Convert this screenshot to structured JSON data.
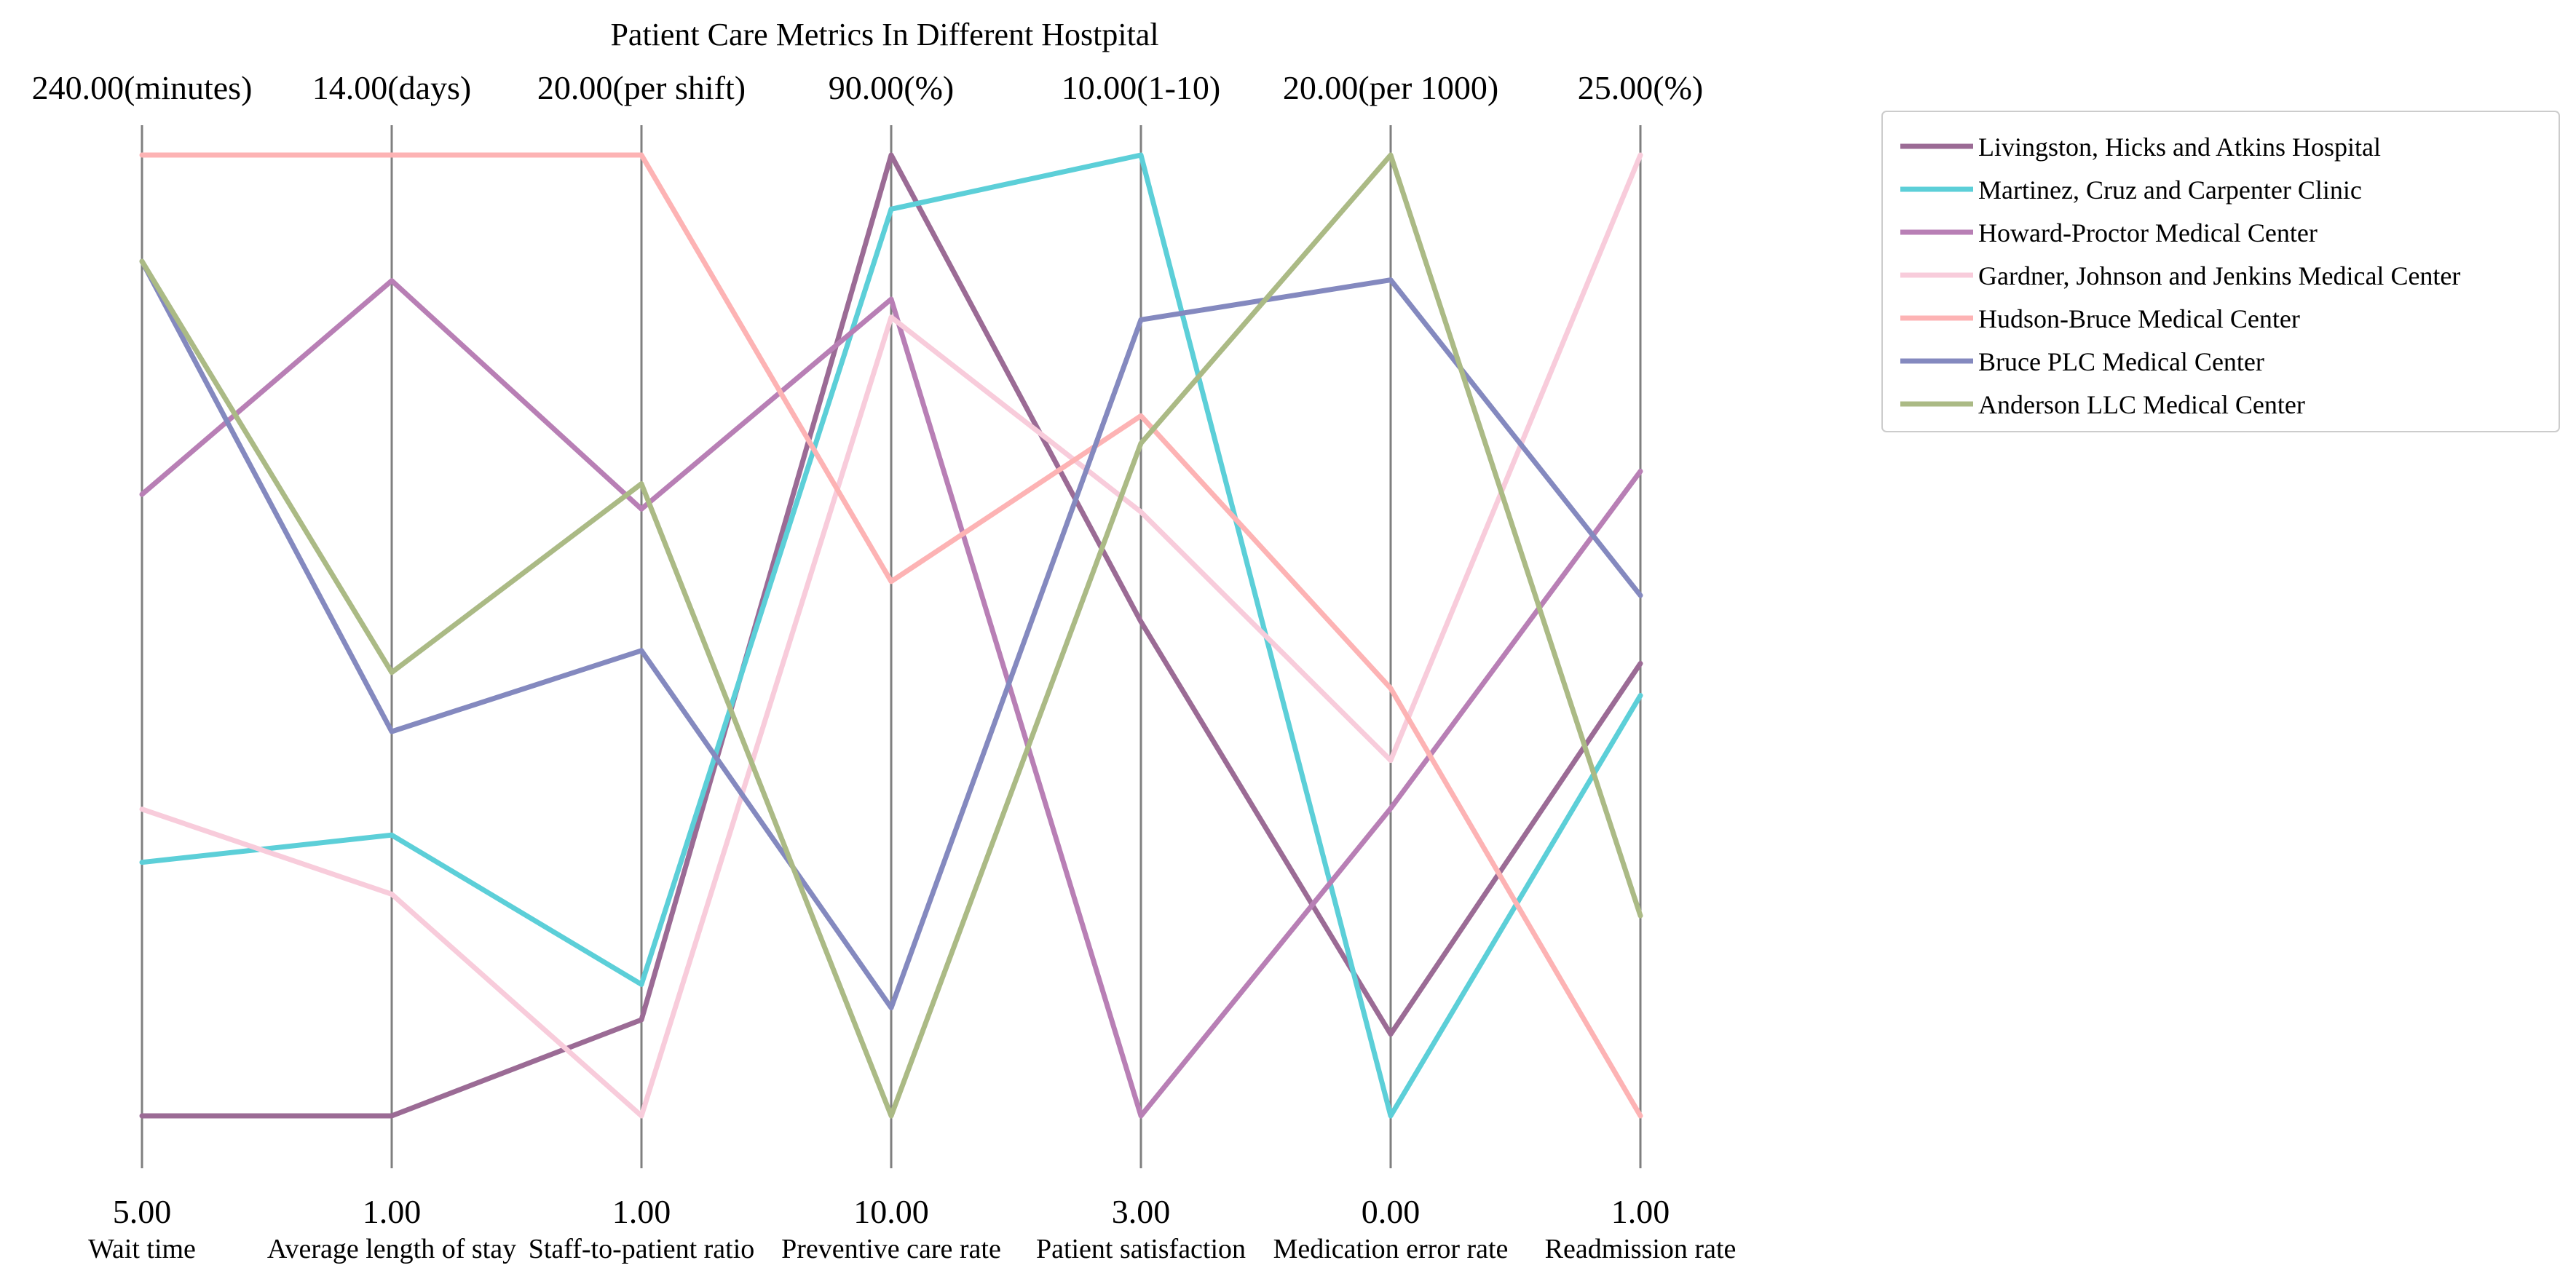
{
  "chart_data": {
    "type": "parallel-coordinates",
    "title": "Patient Care Metrics In Different Hostpital",
    "axes": [
      {
        "name": "Wait time",
        "min": 5,
        "max": 240,
        "min_label": "5.00",
        "max_label": "240.00(minutes)"
      },
      {
        "name": "Average length of stay",
        "min": 1,
        "max": 14,
        "min_label": "1.00",
        "max_label": "14.00(days)"
      },
      {
        "name": "Staff-to-patient ratio",
        "min": 1,
        "max": 20,
        "min_label": "1.00",
        "max_label": "20.00(per shift)"
      },
      {
        "name": "Preventive care rate",
        "min": 10,
        "max": 90,
        "min_label": "10.00",
        "max_label": "90.00(%)"
      },
      {
        "name": "Patient satisfaction",
        "min": 3,
        "max": 10,
        "min_label": "3.00",
        "max_label": "10.00(1-10)"
      },
      {
        "name": "Medication error rate",
        "min": 0,
        "max": 20,
        "min_label": "0.00",
        "max_label": "20.00(per 1000)"
      },
      {
        "name": "Readmission rate",
        "min": 1,
        "max": 25,
        "min_label": "1.00",
        "max_label": "25.00(%)"
      }
    ],
    "series": [
      {
        "name": "Livingston, Hicks and Atkins  Hospital",
        "color": "#9b6b95",
        "values": [
          5,
          1,
          2.9,
          90,
          6.6,
          1.7,
          12.3
        ]
      },
      {
        "name": "Martinez, Cruz and Carpenter  Clinic",
        "color": "#5ccfd8",
        "values": [
          67,
          4.8,
          3.6,
          85.5,
          10,
          0,
          11.5
        ]
      },
      {
        "name": "Howard-Proctor  Medical Center",
        "color": "#b87fb5",
        "values": [
          157,
          12.3,
          13.0,
          78,
          3,
          6.4,
          17.1
        ]
      },
      {
        "name": "Gardner, Johnson and Jenkins  Medical Center",
        "color": "#f8ccdb",
        "values": [
          80,
          4.0,
          1,
          76.5,
          7.4,
          7.4,
          25
        ]
      },
      {
        "name": "Hudson-Bruce  Medical Center",
        "color": "#fdb3b4",
        "values": [
          240,
          14,
          20,
          54.5,
          8.1,
          8.9,
          1
        ]
      },
      {
        "name": "Bruce PLC  Medical Center",
        "color": "#8489bf",
        "values": [
          214,
          6.2,
          10.2,
          19,
          8.8,
          17.4,
          14.0
        ]
      },
      {
        "name": "Anderson LLC  Medical Center",
        "color": "#abba85",
        "values": [
          214,
          7.0,
          13.5,
          10,
          7.9,
          20,
          6.0
        ]
      }
    ],
    "legend_position": "top-right",
    "grid": false
  }
}
